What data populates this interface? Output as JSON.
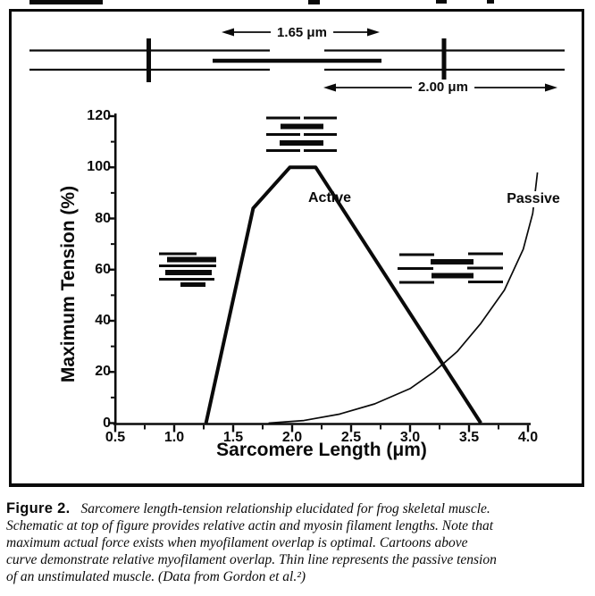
{
  "schematic": {
    "myosin_length_label": "1.65 μm",
    "actin_length_label": "2.00 μm"
  },
  "labels": {
    "active": "Active",
    "passive": "Passive"
  },
  "chart_data": {
    "type": "line",
    "title": "",
    "xlabel": "Sarcomere Length (μm)",
    "ylabel": "Maximum Tension (%)",
    "x_range": [
      0.5,
      4.0
    ],
    "y_range": [
      0,
      120
    ],
    "grid": false,
    "x_tick_labels": [
      "0.5",
      "1.0",
      "1.5",
      "2.0",
      "2.5",
      "3.0",
      "3.5",
      "4.0"
    ],
    "y_tick_labels": [
      "0",
      "20",
      "40",
      "60",
      "80",
      "100",
      "120"
    ],
    "series": [
      {
        "name": "Active",
        "line": "thick",
        "points": [
          [
            1.27,
            0
          ],
          [
            1.67,
            84
          ],
          [
            1.98,
            100
          ],
          [
            2.2,
            100
          ],
          [
            3.6,
            0
          ]
        ]
      },
      {
        "name": "Passive",
        "line": "thin",
        "points": [
          [
            1.8,
            0
          ],
          [
            2.1,
            1
          ],
          [
            2.4,
            3.5
          ],
          [
            2.7,
            7.5
          ],
          [
            3.0,
            13.5
          ],
          [
            3.2,
            20
          ],
          [
            3.4,
            28
          ],
          [
            3.6,
            39
          ],
          [
            3.8,
            52
          ],
          [
            3.96,
            68
          ],
          [
            4.04,
            82
          ],
          [
            4.08,
            98
          ]
        ]
      }
    ],
    "annotations": [
      {
        "text": "Active",
        "x": 2.32,
        "y": 88
      },
      {
        "text": "Passive",
        "x": 4.05,
        "y": 88
      }
    ]
  },
  "caption": {
    "tag": "Figure 2.",
    "lines": [
      "Sarcomere length-tension relationship elucidated for frog skeletal muscle.",
      "Schematic at top of figure provides relative actin and myosin filament lengths. Note that",
      "maximum actual force exists when myofilament overlap is optimal. Cartoons above",
      "curve demonstrate relative myofilament overlap. Thin line represents the passive tension",
      "of an unstimulated muscle. (Data from Gordon et al.²)"
    ]
  }
}
